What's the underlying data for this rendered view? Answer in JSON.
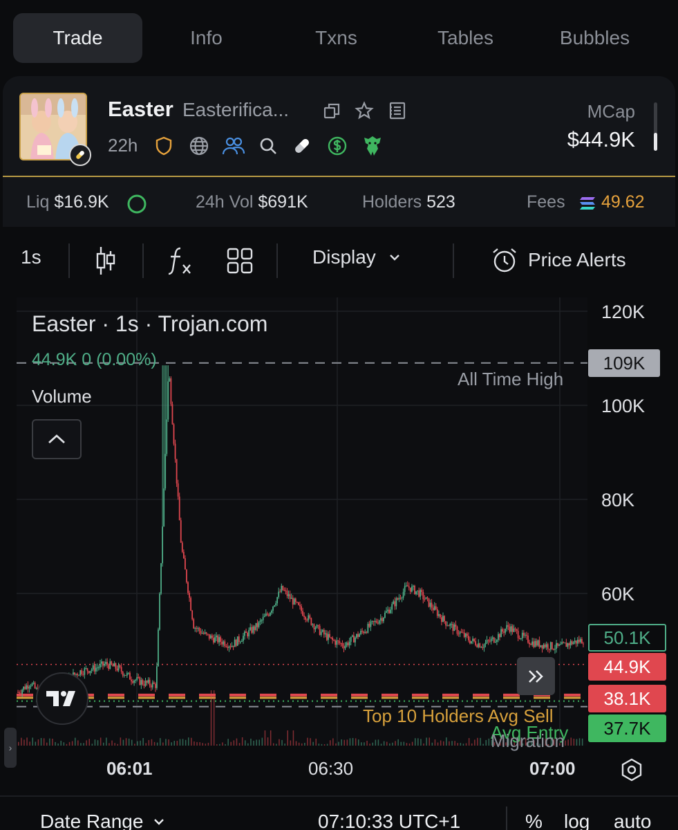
{
  "tabs": [
    {
      "label": "Trade",
      "active": true
    },
    {
      "label": "Info",
      "active": false
    },
    {
      "label": "Txns",
      "active": false
    },
    {
      "label": "Tables",
      "active": false
    },
    {
      "label": "Bubbles",
      "active": false
    }
  ],
  "token": {
    "name": "Easter",
    "full_name": "Easterifica...",
    "age": "22h",
    "mcap_label": "MCap",
    "mcap_value": "$44.9K"
  },
  "stats": {
    "liq_label": "Liq",
    "liq_value": "$16.9K",
    "vol_label": "24h Vol",
    "vol_value": "$691K",
    "holders_label": "Holders",
    "holders_value": "523",
    "fees_label": "Fees",
    "fees_value": "49.62"
  },
  "toolbar": {
    "interval": "1s",
    "display_label": "Display",
    "alerts_label": "Price Alerts"
  },
  "chart": {
    "title": "Easter · 1s · Trojan.com",
    "ohlc": "44.9K 0 (0.00%)",
    "volume_label": "Volume",
    "ath_label": "All Time High",
    "y_ticks": [
      "120K",
      "100K",
      "80K",
      "60K"
    ],
    "badges": [
      {
        "value": "109K",
        "bg": "#a8abb2",
        "fg": "#111214"
      },
      {
        "value": "50.1K",
        "bg": "#0b0c0e",
        "fg": "#4fae88"
      },
      {
        "value": "44.9K",
        "bg": "#e0474f",
        "fg": "#ffffff"
      },
      {
        "value": "38.1K",
        "bg": "#e0474f",
        "fg": "#ffffff"
      },
      {
        "value": "37.7K",
        "bg": "#3fb760",
        "fg": "#0b0c0e"
      }
    ],
    "x_ticks": [
      "06:01",
      "06:30",
      "07:00"
    ],
    "line_labels": {
      "top10": "Top 10 Holders Avg Sell",
      "avg_entry": "Avg Entry",
      "migration": "Migration"
    }
  },
  "chart_data": {
    "type": "line",
    "title": "Easter · 1s · Trojan.com",
    "xlabel": "",
    "ylabel": "",
    "x_ticks": [
      "06:01",
      "06:30",
      "07:00"
    ],
    "ylim": [
      35000,
      122000
    ],
    "y_ticks": [
      60000,
      80000,
      100000,
      120000
    ],
    "series": [
      {
        "values": [
          39000,
          41000,
          37500,
          39000,
          42000,
          43500,
          44000,
          45000,
          44000,
          42000,
          41000,
          40500,
          108000,
          70000,
          53000,
          51000,
          50000,
          49000,
          51000,
          53000,
          56000,
          61000,
          58000,
          55000,
          52000,
          50000,
          49000,
          51000,
          53000,
          55000,
          58000,
          61500,
          60000,
          57000,
          54000,
          52000,
          50000,
          49000,
          50500,
          53000,
          51000,
          49500,
          49000,
          48500,
          49500,
          50100
        ]
      }
    ],
    "reference_lines": {
      "all_time_high": 109000,
      "current": 44900,
      "top10_avg_sell": 38100,
      "avg_entry": 37700
    },
    "grid": true
  },
  "bottom": {
    "date_range": "Date Range",
    "time": "07:10:33 UTC+1",
    "percent": "%",
    "log": "log",
    "auto": "auto"
  },
  "colors": {
    "up": "#4fae88",
    "down": "#e0474f",
    "gold": "#c9a14a",
    "fees": "#e6a23c"
  }
}
